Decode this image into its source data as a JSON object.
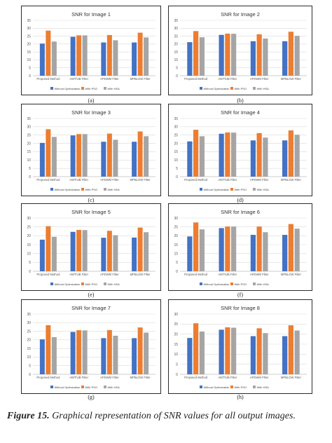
{
  "chart_data": [
    {
      "type": "bar",
      "title": "SNR for Image 1",
      "letter": "(a)",
      "categories": [
        "Proposed Method",
        "AWThJB Filter",
        "APDWM Filter",
        "MPBLOW Filter"
      ],
      "ylim": [
        0,
        35
      ],
      "yticks": [
        "0",
        "5",
        "10",
        "15",
        "20",
        "25",
        "30",
        "35"
      ],
      "legend_position": "bottom",
      "series": [
        {
          "name": "Without Optimization",
          "values": [
            20.3,
            24.6,
            21.0,
            21.0
          ]
        },
        {
          "name": "With PSO",
          "values": [
            28.5,
            25.5,
            25.7,
            27.2
          ]
        },
        {
          "name": "With HSA",
          "values": [
            21.6,
            25.5,
            22.4,
            24.2
          ]
        }
      ]
    },
    {
      "type": "bar",
      "title": "SNR for Image 2",
      "letter": "(b)",
      "categories": [
        "Proposed Method",
        "AWThJB Filter",
        "APDWM Filter",
        "MPBLOW Filter"
      ],
      "ylim": [
        0,
        35
      ],
      "yticks": [
        "0",
        "5",
        "10",
        "15",
        "20",
        "25",
        "30",
        "35"
      ],
      "legend_position": "bottom",
      "series": [
        {
          "name": "Without Optimization",
          "values": [
            21.2,
            25.8,
            21.8,
            21.8
          ]
        },
        {
          "name": "With PSO",
          "values": [
            28.2,
            26.6,
            26.2,
            27.8
          ]
        },
        {
          "name": "With HSA",
          "values": [
            24.3,
            26.5,
            23.5,
            25.2
          ]
        }
      ]
    },
    {
      "type": "bar",
      "title": "SNR for Image 3",
      "letter": "(c)",
      "categories": [
        "Proposed Method",
        "AWThJB Filter",
        "APDWM Filter",
        "MPBLOW Filter"
      ],
      "ylim": [
        0,
        35
      ],
      "yticks": [
        "0",
        "5",
        "10",
        "15",
        "20",
        "25",
        "30",
        "35"
      ],
      "legend_position": "bottom",
      "series": [
        {
          "name": "Without Optimization",
          "values": [
            20.3,
            24.8,
            21.0,
            21.0
          ]
        },
        {
          "name": "With PSO",
          "values": [
            28.5,
            25.6,
            25.9,
            27.2
          ]
        },
        {
          "name": "With HSA",
          "values": [
            23.9,
            25.6,
            22.2,
            24.3
          ]
        }
      ]
    },
    {
      "type": "bar",
      "title": "SNR for Image 4",
      "letter": "(d)",
      "categories": [
        "Proposed Method",
        "AWThJB Filter",
        "APDWM Filter",
        "MPBLOW Filter"
      ],
      "ylim": [
        0,
        35
      ],
      "yticks": [
        "0",
        "5",
        "10",
        "15",
        "20",
        "25",
        "30",
        "35"
      ],
      "legend_position": "bottom",
      "series": [
        {
          "name": "Without Optimization",
          "values": [
            21.2,
            25.8,
            21.8,
            21.8
          ]
        },
        {
          "name": "With PSO",
          "values": [
            28.2,
            26.6,
            26.2,
            27.8
          ]
        },
        {
          "name": "With HSA",
          "values": [
            24.3,
            26.5,
            23.5,
            25.2
          ]
        }
      ]
    },
    {
      "type": "bar",
      "title": "SNR for Image 5",
      "letter": "(e)",
      "categories": [
        "Proposed Method",
        "AWThJB Filter",
        "APDWM Filter",
        "MPBLOW Filter"
      ],
      "ylim": [
        0,
        30
      ],
      "yticks": [
        "0",
        "5",
        "10",
        "15",
        "20",
        "25",
        "30"
      ],
      "legend_position": "bottom",
      "series": [
        {
          "name": "Without Optimization",
          "values": [
            17.8,
            22.2,
            18.9,
            19.0
          ]
        },
        {
          "name": "With PSO",
          "values": [
            25.4,
            23.3,
            22.8,
            24.6
          ]
        },
        {
          "name": "With HSA",
          "values": [
            19.4,
            23.2,
            20.3,
            22.0
          ]
        }
      ]
    },
    {
      "type": "bar",
      "title": "SNR for Image 6",
      "letter": "(f)",
      "categories": [
        "Proposed Method",
        "AWThJB Filter",
        "APDWM Filter",
        "MPBLOW Filter"
      ],
      "ylim": [
        0,
        30
      ],
      "yticks": [
        "0",
        "5",
        "10",
        "15",
        "20",
        "25",
        "30"
      ],
      "legend_position": "bottom",
      "series": [
        {
          "name": "Without Optimization",
          "values": [
            19.6,
            24.3,
            20.5,
            20.5
          ]
        },
        {
          "name": "With PSO",
          "values": [
            27.5,
            25.2,
            25.2,
            26.6
          ]
        },
        {
          "name": "With HSA",
          "values": [
            23.6,
            25.2,
            22.0,
            24.0
          ]
        }
      ]
    },
    {
      "type": "bar",
      "title": "SNR for Image 7",
      "letter": "(g)",
      "categories": [
        "Proposed Method",
        "AWThJB Filter",
        "APDWM Filter",
        "MPBLOW Filter"
      ],
      "ylim": [
        0,
        35
      ],
      "yticks": [
        "0",
        "5",
        "10",
        "15",
        "20",
        "25",
        "30",
        "35"
      ],
      "legend_position": "bottom",
      "series": [
        {
          "name": "Without Optimization",
          "values": [
            20.3,
            24.6,
            21.0,
            21.0
          ]
        },
        {
          "name": "With PSO",
          "values": [
            28.5,
            25.6,
            25.7,
            27.2
          ]
        },
        {
          "name": "With HSA",
          "values": [
            21.6,
            25.5,
            22.4,
            24.2
          ]
        }
      ]
    },
    {
      "type": "bar",
      "title": "SNR for Image 8",
      "letter": "(h)",
      "categories": [
        "Proposed Method",
        "AWThJB Filter",
        "APDWM Filter",
        "MPBLOW Filter"
      ],
      "ylim": [
        0,
        30
      ],
      "yticks": [
        "0",
        "5",
        "10",
        "15",
        "20",
        "25",
        "30"
      ],
      "legend_position": "bottom",
      "series": [
        {
          "name": "Without Optimization",
          "values": [
            18.1,
            22.2,
            19.0,
            19.0
          ]
        },
        {
          "name": "With PSO",
          "values": [
            25.4,
            23.4,
            22.9,
            24.4
          ]
        },
        {
          "name": "With HSA",
          "values": [
            21.3,
            23.2,
            20.5,
            21.8
          ]
        }
      ]
    }
  ],
  "colors": {
    "without_optimization": "#4472c4",
    "with_pso": "#ed7d31",
    "with_hsa": "#a5a5a5",
    "gridline": "#d9d9d9",
    "axis": "#9a9a9a"
  },
  "caption": {
    "label": "Figure 15.",
    "text": "Graphical representation of SNR values for all output images."
  }
}
